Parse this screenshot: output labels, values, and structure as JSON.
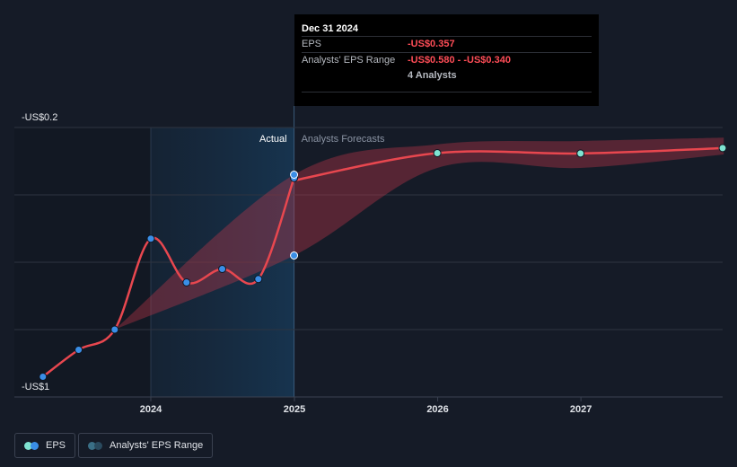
{
  "chart_data": {
    "type": "line",
    "y_tick_labels": [
      "-US$0.2",
      "-US$1"
    ],
    "ylim": [
      -1.0,
      -0.2
    ],
    "x_tick_labels": [
      "2024",
      "2025",
      "2026",
      "2027"
    ],
    "section_labels": {
      "actual": "Actual",
      "forecast": "Analysts Forecasts"
    },
    "series": [
      {
        "name": "EPS",
        "type": "actual",
        "x": [
          "2023-04-01",
          "2023-07-01",
          "2023-10-01",
          "2024-01-01",
          "2024-04-01",
          "2024-07-01",
          "2024-10-01",
          "2024-12-31"
        ],
        "y": [
          -0.94,
          -0.86,
          -0.8,
          -0.53,
          -0.66,
          -0.62,
          -0.65,
          -0.35
        ]
      },
      {
        "name": "EPS",
        "type": "forecast",
        "x": [
          "2024-12-31",
          "2025-12-31",
          "2026-12-31",
          "2027-12-31"
        ],
        "y": [
          -0.357,
          -0.276,
          -0.277,
          -0.261
        ]
      }
    ],
    "range": {
      "name": "Analysts' EPS Range",
      "x": [
        "2023-10-01",
        "2024-12-31",
        "2025-12-31",
        "2026-12-31",
        "2027-12-31"
      ],
      "low": [
        -0.8,
        -0.58,
        -0.32,
        -0.32,
        -0.28
      ],
      "high": [
        -0.8,
        -0.34,
        -0.25,
        -0.24,
        -0.23
      ]
    },
    "extra_points": [
      {
        "x": "2024-12-31",
        "y": -0.34
      },
      {
        "x": "2024-12-31",
        "y": -0.58
      }
    ],
    "highlight_points": [
      {
        "x": "2025-12-31",
        "y": -0.276
      },
      {
        "x": "2026-12-31",
        "y": -0.277
      },
      {
        "x": "2027-12-31",
        "y": -0.261
      }
    ],
    "colors": {
      "line": "#e8474f",
      "range_fill": "#c0384a",
      "actual_point": "#3a8ee6",
      "forecast_point": "#7fe3d1",
      "actual_band": "#16324a"
    },
    "grid": true,
    "legend_position": "bottom-left"
  },
  "tooltip": {
    "date": "Dec 31 2024",
    "rows": [
      {
        "key": "EPS",
        "value": "-US$0.357"
      },
      {
        "key": "Analysts' EPS Range",
        "value": "-US$0.580 - -US$0.340"
      },
      {
        "key": "",
        "value": "4 Analysts"
      }
    ]
  },
  "legend": {
    "eps_label": "EPS",
    "range_label": "Analysts' EPS Range"
  }
}
